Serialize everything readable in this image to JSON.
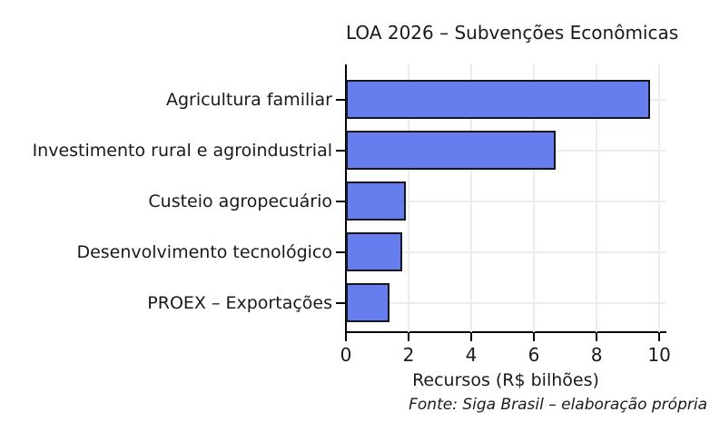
{
  "colors": {
    "bar_fill": "#667eed",
    "bar_edge": "#16161f",
    "grid": "#ececec",
    "axis": "#000000",
    "text": "#1a1a1a"
  },
  "chart_data": {
    "type": "bar",
    "orientation": "horizontal",
    "title": "LOA 2026 – Subvenções Econômicas",
    "categories": [
      "Agricultura familiar",
      "Investimento rural e agroindustrial",
      "Custeio agropecuário",
      "Desenvolvimento tecnológico",
      "PROEX – Exportações"
    ],
    "values": [
      9.7,
      6.7,
      1.9,
      1.8,
      1.4
    ],
    "xlabel": "Recursos (R$ bilhões)",
    "ylabel": "",
    "xlim": [
      0,
      10.2
    ],
    "xticks": [
      0,
      2,
      4,
      6,
      8,
      10
    ],
    "grid": true,
    "legend": false,
    "source_note": "Fonte: Siga Brasil – elaboração própria"
  }
}
